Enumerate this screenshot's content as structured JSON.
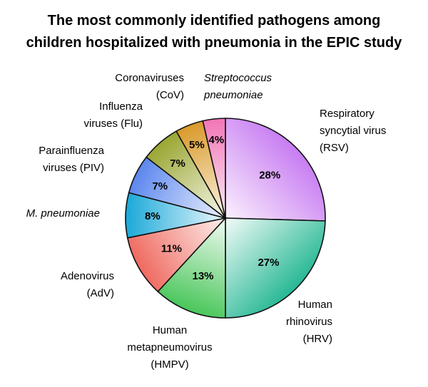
{
  "title_lines": [
    "The most commonly identified pathogens among",
    "children hospitalized with pneumonia in the EPIC study"
  ],
  "chart_data": {
    "type": "pie",
    "title": "The most commonly identified pathogens among children hospitalized with pneumonia in the EPIC study",
    "slices": [
      {
        "label": [
          "Respiratory",
          "syncytial virus",
          "(RSV)"
        ],
        "value": 28,
        "value_label": "28%",
        "italic": false,
        "color_from": "#c77cf2",
        "color_to": "#fbf0fd"
      },
      {
        "label": [
          "Human",
          "rhinovirus",
          "(HRV)"
        ],
        "value": 27,
        "value_label": "27%",
        "italic": false,
        "color_from": "#27b894",
        "color_to": "#f2fbf8"
      },
      {
        "label": [
          "Human",
          "metapneumovirus",
          "(HMPV)"
        ],
        "value": 13,
        "value_label": "13%",
        "italic": false,
        "color_from": "#49c65a",
        "color_to": "#f2fbf3"
      },
      {
        "label": [
          "Adenovirus",
          "(AdV)"
        ],
        "value": 11,
        "value_label": "11%",
        "italic": false,
        "color_from": "#ef6a60",
        "color_to": "#fdf0ee"
      },
      {
        "label": [
          "M. pneumoniae"
        ],
        "value": 8,
        "value_label": "8%",
        "italic": true,
        "color_from": "#1aa8d8",
        "color_to": "#eef9fd"
      },
      {
        "label": [
          "Parainfluenza",
          "viruses (PIV)"
        ],
        "value": 7,
        "value_label": "7%",
        "italic": false,
        "color_from": "#5b86ee",
        "color_to": "#eef3fd"
      },
      {
        "label": [
          "Influenza",
          "viruses (Flu)"
        ],
        "value": 7,
        "value_label": "7%",
        "italic": false,
        "color_from": "#9aa632",
        "color_to": "#f6f7ea"
      },
      {
        "label": [
          "Coronaviruses",
          "(CoV)"
        ],
        "value": 5,
        "value_label": "5%",
        "italic": false,
        "color_from": "#d99a2a",
        "color_to": "#fcf4e6"
      },
      {
        "label": [
          "Streptococcus",
          "pneumoniae"
        ],
        "value": 4,
        "value_label": "4%",
        "italic": true,
        "color_from": "#f275b6",
        "color_to": "#fdeef6"
      }
    ]
  }
}
